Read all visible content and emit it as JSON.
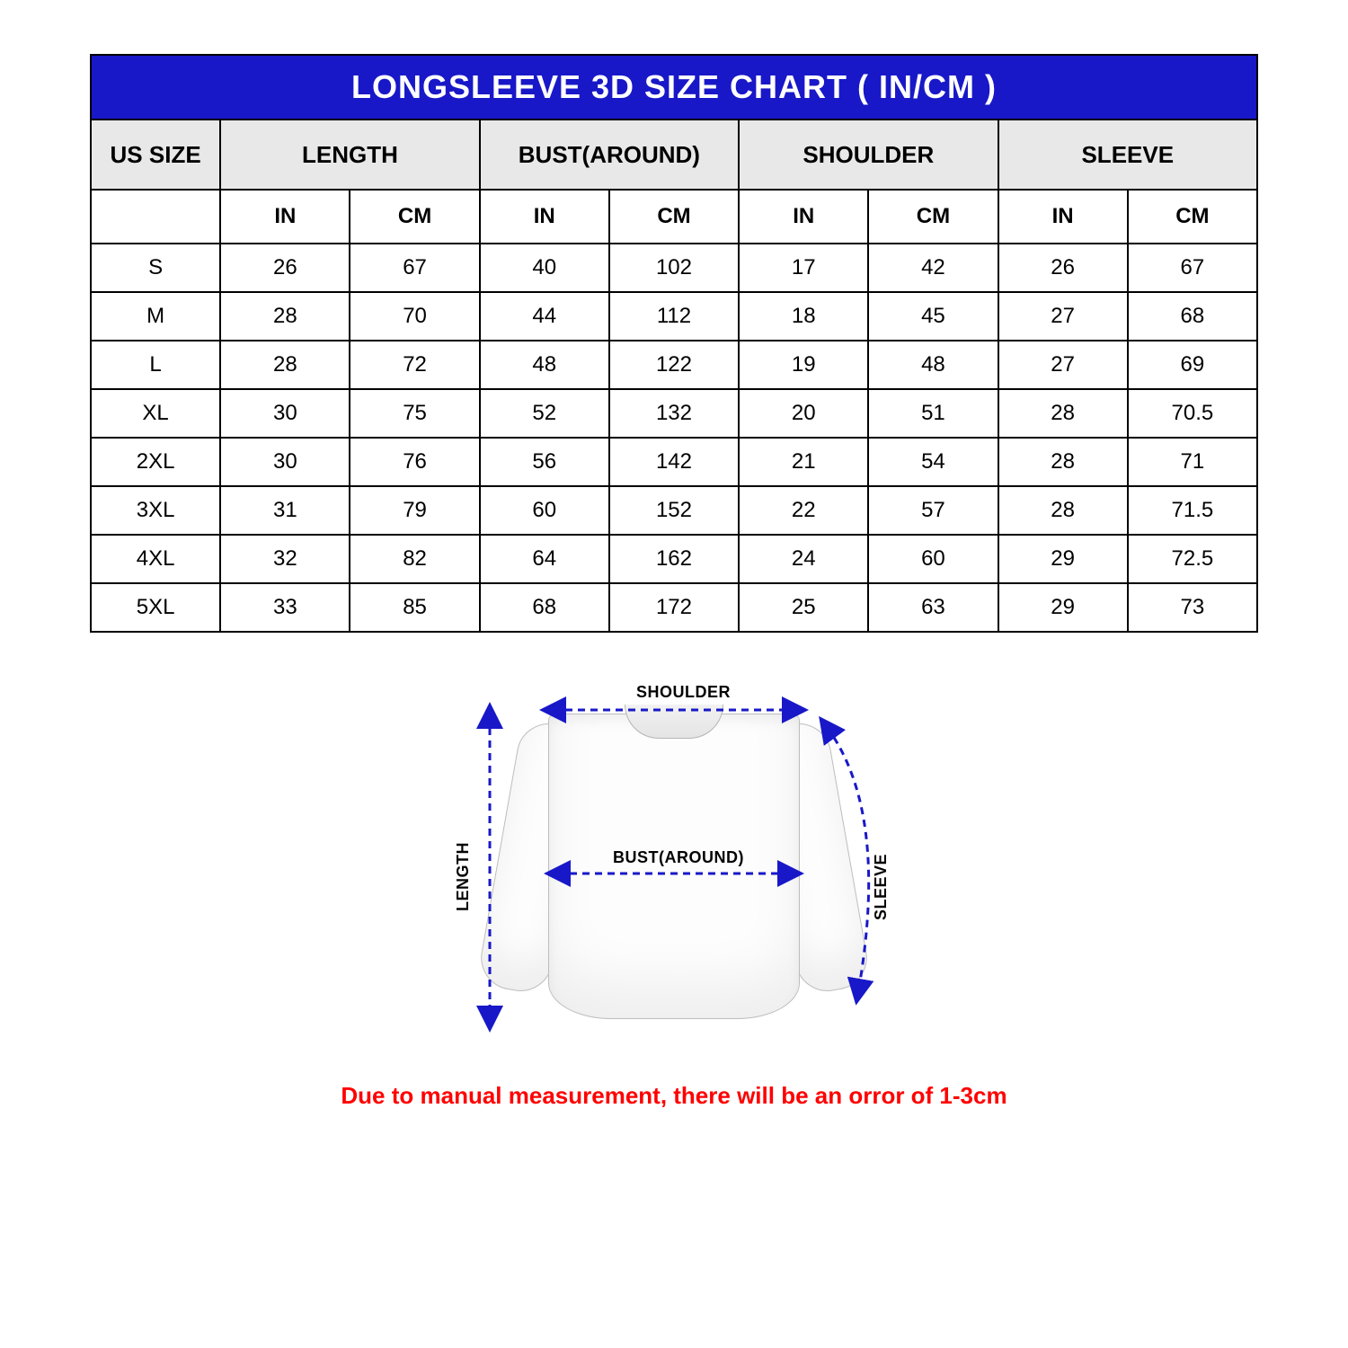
{
  "title": "LONGSLEEVE 3D SIZE CHART ( IN/CM )",
  "colors": {
    "title_bg": "#1818c8",
    "title_text": "#ffffff",
    "header_bg": "#e8e8e8",
    "border": "#000000",
    "arrow": "#1818c8",
    "note": "#ff0000"
  },
  "table": {
    "main_headers": [
      "US SIZE",
      "LENGTH",
      "BUST(AROUND)",
      "SHOULDER",
      "SLEEVE"
    ],
    "sub_headers": [
      "",
      "IN",
      "CM",
      "IN",
      "CM",
      "IN",
      "CM",
      "IN",
      "CM"
    ],
    "rows": [
      [
        "S",
        "26",
        "67",
        "40",
        "102",
        "17",
        "42",
        "26",
        "67"
      ],
      [
        "M",
        "28",
        "70",
        "44",
        "112",
        "18",
        "45",
        "27",
        "68"
      ],
      [
        "L",
        "28",
        "72",
        "48",
        "122",
        "19",
        "48",
        "27",
        "69"
      ],
      [
        "XL",
        "30",
        "75",
        "52",
        "132",
        "20",
        "51",
        "28",
        "70.5"
      ],
      [
        "2XL",
        "30",
        "76",
        "56",
        "142",
        "21",
        "54",
        "28",
        "71"
      ],
      [
        "3XL",
        "31",
        "79",
        "60",
        "152",
        "22",
        "57",
        "28",
        "71.5"
      ],
      [
        "4XL",
        "32",
        "82",
        "64",
        "162",
        "24",
        "60",
        "29",
        "72.5"
      ],
      [
        "5XL",
        "33",
        "85",
        "68",
        "172",
        "25",
        "63",
        "29",
        "73"
      ]
    ]
  },
  "diagram_labels": {
    "shoulder": "SHOULDER",
    "bust": "BUST(AROUND)",
    "length": "LENGTH",
    "sleeve": "SLEEVE"
  },
  "note": "Due to manual measurement,  there will be an orror of 1-3cm"
}
